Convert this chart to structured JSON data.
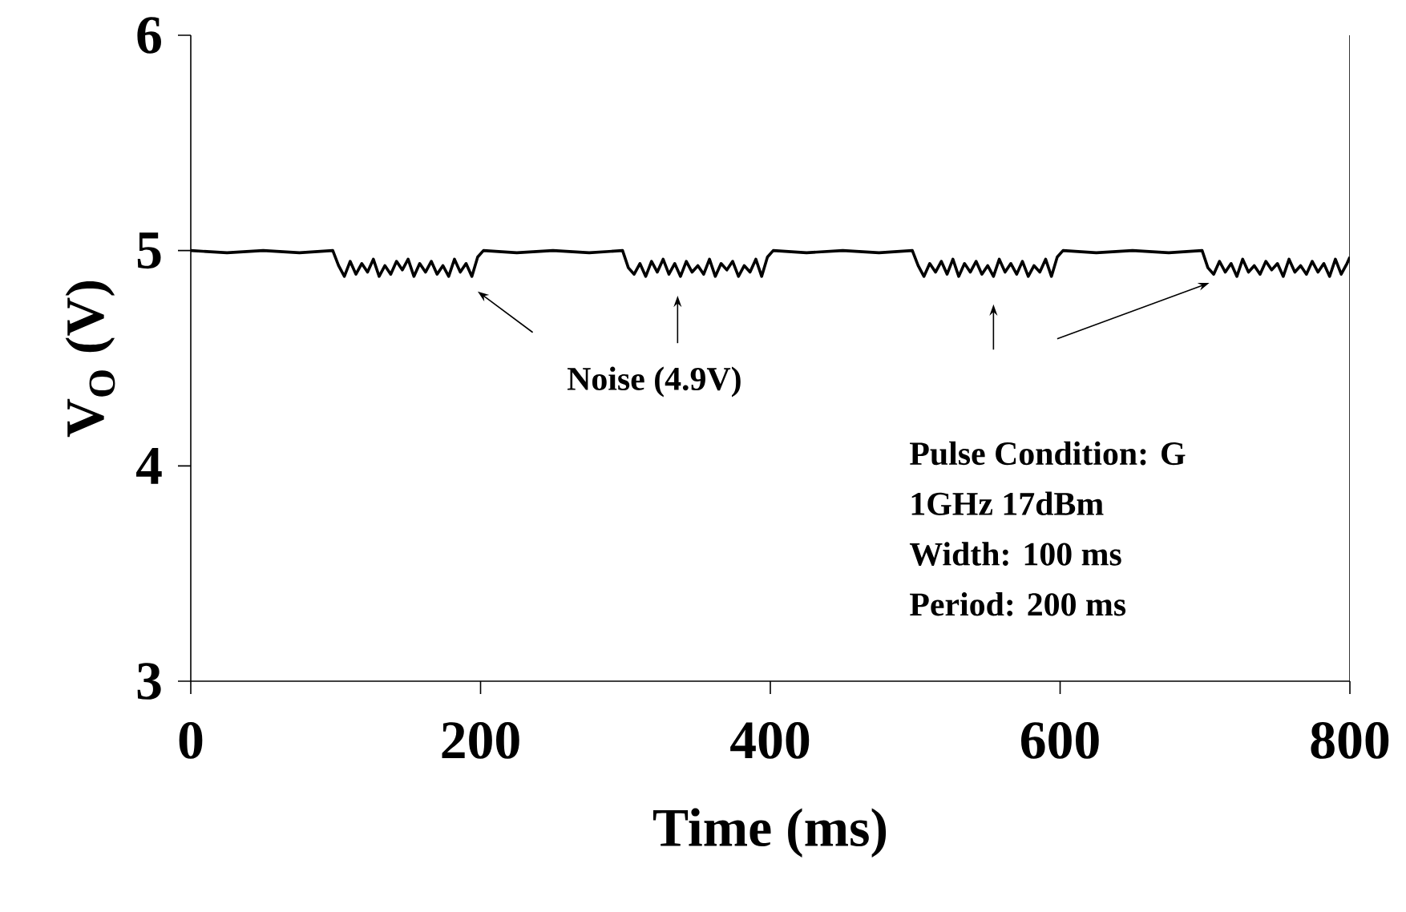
{
  "chart_data": {
    "type": "line",
    "xlabel": "Time (ms)",
    "ylabel": "V$_{O}$ (V)",
    "xlim": [
      0,
      800
    ],
    "ylim": [
      3,
      6
    ],
    "xticks": [
      0,
      200,
      400,
      600,
      800
    ],
    "yticks": [
      3,
      4,
      5,
      6
    ],
    "grid": false,
    "marker": "none",
    "line_style": "solid",
    "annotations": [
      "Noise (4.9V)",
      "Pulse Condition: G",
      "1GHz 17dBm",
      "Width: 100 ms",
      "Period: 200 ms"
    ],
    "series": [
      {
        "color": "#000000",
        "x": [
          0,
          25,
          50,
          75,
          98,
          102,
          106,
          110,
          114,
          118,
          122,
          126,
          130,
          134,
          138,
          142,
          146,
          150,
          154,
          158,
          162,
          166,
          170,
          174,
          178,
          182,
          186,
          190,
          194,
          198,
          202,
          225,
          250,
          275,
          298,
          302,
          306,
          310,
          314,
          318,
          322,
          326,
          330,
          334,
          338,
          342,
          346,
          350,
          354,
          358,
          362,
          366,
          370,
          374,
          378,
          382,
          386,
          390,
          394,
          398,
          402,
          425,
          450,
          475,
          498,
          502,
          506,
          510,
          514,
          518,
          522,
          526,
          530,
          534,
          538,
          542,
          546,
          550,
          554,
          558,
          562,
          566,
          570,
          574,
          578,
          582,
          586,
          590,
          594,
          598,
          602,
          625,
          650,
          675,
          698,
          702,
          706,
          710,
          714,
          718,
          722,
          726,
          730,
          734,
          738,
          742,
          746,
          750,
          754,
          758,
          762,
          766,
          770,
          774,
          778,
          782,
          786,
          790,
          794,
          798,
          800
        ],
        "values": [
          5.0,
          4.99,
          5.0,
          4.99,
          5.0,
          4.93,
          4.88,
          4.95,
          4.89,
          4.94,
          4.9,
          4.96,
          4.88,
          4.93,
          4.89,
          4.95,
          4.91,
          4.96,
          4.88,
          4.94,
          4.9,
          4.95,
          4.89,
          4.93,
          4.88,
          4.96,
          4.9,
          4.94,
          4.88,
          4.97,
          5.0,
          4.99,
          5.0,
          4.99,
          5.0,
          4.92,
          4.89,
          4.94,
          4.88,
          4.95,
          4.9,
          4.96,
          4.89,
          4.94,
          4.88,
          4.95,
          4.9,
          4.93,
          4.89,
          4.96,
          4.88,
          4.94,
          4.91,
          4.95,
          4.88,
          4.93,
          4.9,
          4.96,
          4.88,
          4.97,
          5.0,
          4.99,
          5.0,
          4.99,
          5.0,
          4.93,
          4.88,
          4.94,
          4.9,
          4.95,
          4.89,
          4.96,
          4.88,
          4.94,
          4.9,
          4.95,
          4.89,
          4.93,
          4.88,
          4.96,
          4.9,
          4.94,
          4.89,
          4.95,
          4.88,
          4.93,
          4.9,
          4.96,
          4.88,
          4.97,
          5.0,
          4.99,
          5.0,
          4.99,
          5.0,
          4.92,
          4.89,
          4.95,
          4.9,
          4.94,
          4.88,
          4.96,
          4.9,
          4.93,
          4.89,
          4.95,
          4.91,
          4.94,
          4.88,
          4.96,
          4.9,
          4.93,
          4.89,
          4.95,
          4.9,
          4.94,
          4.88,
          4.96,
          4.89,
          4.94,
          4.97
        ]
      }
    ]
  }
}
